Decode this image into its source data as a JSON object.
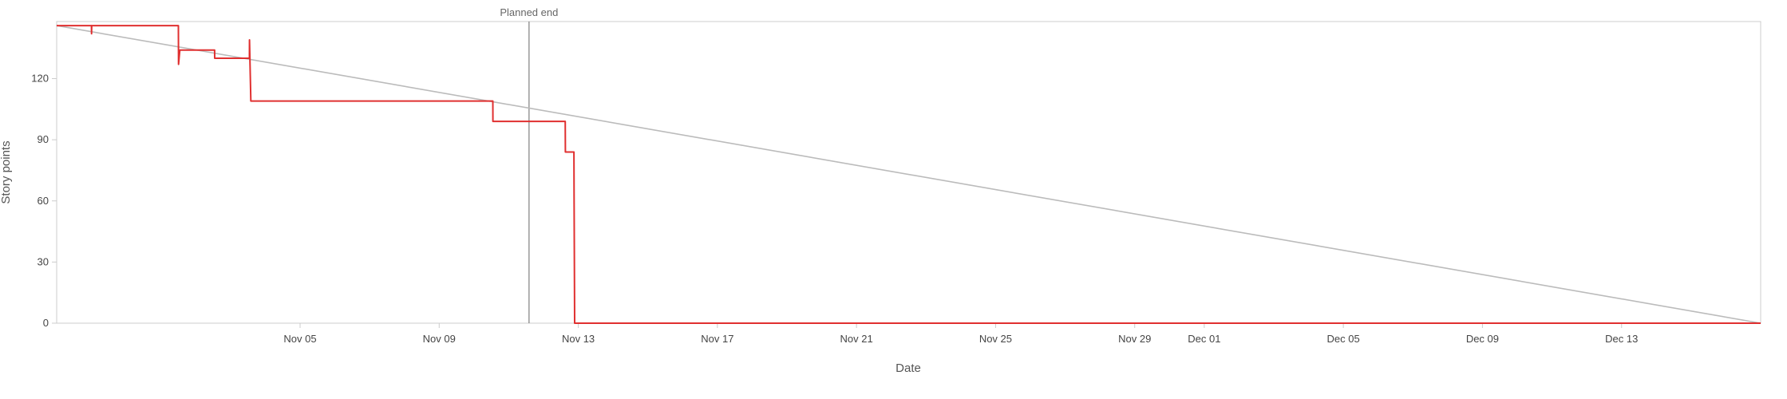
{
  "chart_data": {
    "type": "line",
    "xlabel": "Date",
    "ylabel": "Story points",
    "x_range": [
      "2024-10-29",
      "2024-12-17"
    ],
    "ylim": [
      0,
      148
    ],
    "x_ticks": [
      "2024-11-05",
      "2024-11-09",
      "2024-11-13",
      "2024-11-17",
      "2024-11-21",
      "2024-11-25",
      "2024-11-29",
      "2024-12-01",
      "2024-12-05",
      "2024-12-09",
      "2024-12-13"
    ],
    "x_tick_labels": [
      "Nov 05",
      "Nov 09",
      "Nov 13",
      "Nov 17",
      "Nov 21",
      "Nov 25",
      "Nov 29",
      "Dec 01",
      "Dec 05",
      "Dec 09",
      "Dec 13"
    ],
    "y_ticks": [
      0,
      30,
      60,
      90,
      120
    ],
    "grid": false,
    "legend": "none",
    "annotations": [
      {
        "label": "Planned end",
        "x": "2024-11-11T14:00"
      }
    ],
    "colors": {
      "actual": "#e03030",
      "ideal": "#bbbbbb",
      "marker": "#888888",
      "axis": "#cccccc"
    },
    "series": [
      {
        "id": "ideal",
        "points": [
          [
            "2024-10-29T00:00",
            146
          ],
          [
            "2024-12-17T00:00",
            0
          ]
        ]
      },
      {
        "id": "actual",
        "points": [
          [
            "2024-10-29T00:00",
            146
          ],
          [
            "2024-10-30T00:00",
            146
          ],
          [
            "2024-10-30T00:05",
            142
          ],
          [
            "2024-10-30T00:10",
            146
          ],
          [
            "2024-11-01T12:00",
            146
          ],
          [
            "2024-11-01T12:05",
            127
          ],
          [
            "2024-11-01T13:00",
            134
          ],
          [
            "2024-11-02T13:00",
            134
          ],
          [
            "2024-11-02T13:05",
            130
          ],
          [
            "2024-11-03T13:00",
            130
          ],
          [
            "2024-11-03T13:05",
            139
          ],
          [
            "2024-11-03T14:00",
            109
          ],
          [
            "2024-11-10T13:00",
            109
          ],
          [
            "2024-11-10T13:05",
            99
          ],
          [
            "2024-11-12T15:00",
            99
          ],
          [
            "2024-11-12T15:05",
            84
          ],
          [
            "2024-11-12T21:00",
            84
          ],
          [
            "2024-11-12T21:05",
            62
          ],
          [
            "2024-11-12T21:30",
            0
          ],
          [
            "2024-12-17T00:00",
            0
          ]
        ]
      }
    ]
  }
}
